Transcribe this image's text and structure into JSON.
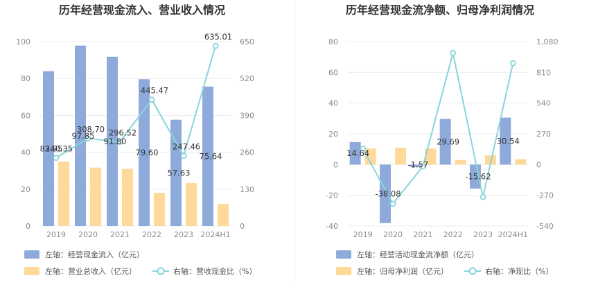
{
  "chart_data": [
    {
      "type": "bar",
      "title": "历年经营现金流入、营业收入情况",
      "categories": [
        "2019",
        "2020",
        "2021",
        "2022",
        "2023",
        "2024H1"
      ],
      "left_axis": {
        "ylim": [
          0,
          100
        ],
        "ticks": [
          0,
          20,
          40,
          60,
          80,
          100
        ]
      },
      "right_axis": {
        "ylim": [
          0,
          650
        ],
        "ticks": [
          0,
          130,
          260,
          390,
          520,
          650
        ]
      },
      "series": [
        {
          "name": "左轴：经营现金流入（亿元）",
          "type": "bar",
          "axis": "left",
          "color": "#8eaadb",
          "values": [
            83.95,
            97.85,
            91.8,
            79.6,
            57.63,
            75.64
          ],
          "labels": [
            "83.95",
            "97.85",
            "91.80",
            "79.60",
            "57.63",
            "75.64"
          ]
        },
        {
          "name": "左轴：营业总收入（亿元）",
          "type": "bar",
          "axis": "left",
          "color": "#ffd99a",
          "values": [
            35.0,
            31.7,
            31.0,
            18.0,
            23.3,
            12.0
          ],
          "labels": [
            "",
            "",
            "",
            "",
            "",
            ""
          ]
        },
        {
          "name": "右轴：营收现金比（%）",
          "type": "line",
          "axis": "right",
          "color": "#88d4dc",
          "values": [
            240.35,
            308.7,
            296.52,
            445.47,
            247.46,
            635.01
          ],
          "labels": [
            "240.35",
            "308.70",
            "296.52",
            "445.47",
            "247.46",
            "635.01"
          ]
        }
      ],
      "legend": "bottom"
    },
    {
      "type": "bar",
      "title": "历年经营现金流净额、归母净利润情况",
      "categories": [
        "2019",
        "2020",
        "2021",
        "2022",
        "2023",
        "2024H1"
      ],
      "left_axis": {
        "ylim": [
          -40,
          80
        ],
        "ticks": [
          -40,
          -20,
          0,
          20,
          40,
          60,
          80
        ]
      },
      "right_axis": {
        "ylim": [
          -540,
          1080
        ],
        "ticks": [
          "-540",
          "-270",
          "0",
          "270",
          "540",
          "810",
          "1,080"
        ]
      },
      "series": [
        {
          "name": "左轴：经营活动现金流净额（亿元）",
          "type": "bar",
          "axis": "left",
          "color": "#8eaadb",
          "values": [
            14.64,
            -38.08,
            -1.57,
            29.69,
            -15.62,
            30.54
          ],
          "labels": [
            "14.64",
            "-38.08",
            "-1.57",
            "29.69",
            "-15.62",
            "30.54"
          ]
        },
        {
          "name": "左轴：归母净利润（亿元）",
          "type": "bar",
          "axis": "left",
          "color": "#ffd99a",
          "values": [
            10.5,
            11.0,
            10.5,
            3.0,
            6.0,
            3.5
          ],
          "labels": [
            "",
            "",
            "",
            "",
            "",
            ""
          ]
        },
        {
          "name": "右轴：净现比（%）",
          "type": "line",
          "axis": "right",
          "color": "#88d4dc",
          "values": [
            140,
            -345,
            -15,
            980,
            -285,
            890
          ],
          "labels": [
            "",
            "",
            "",
            "",
            "",
            ""
          ]
        }
      ],
      "legend": "bottom"
    }
  ]
}
